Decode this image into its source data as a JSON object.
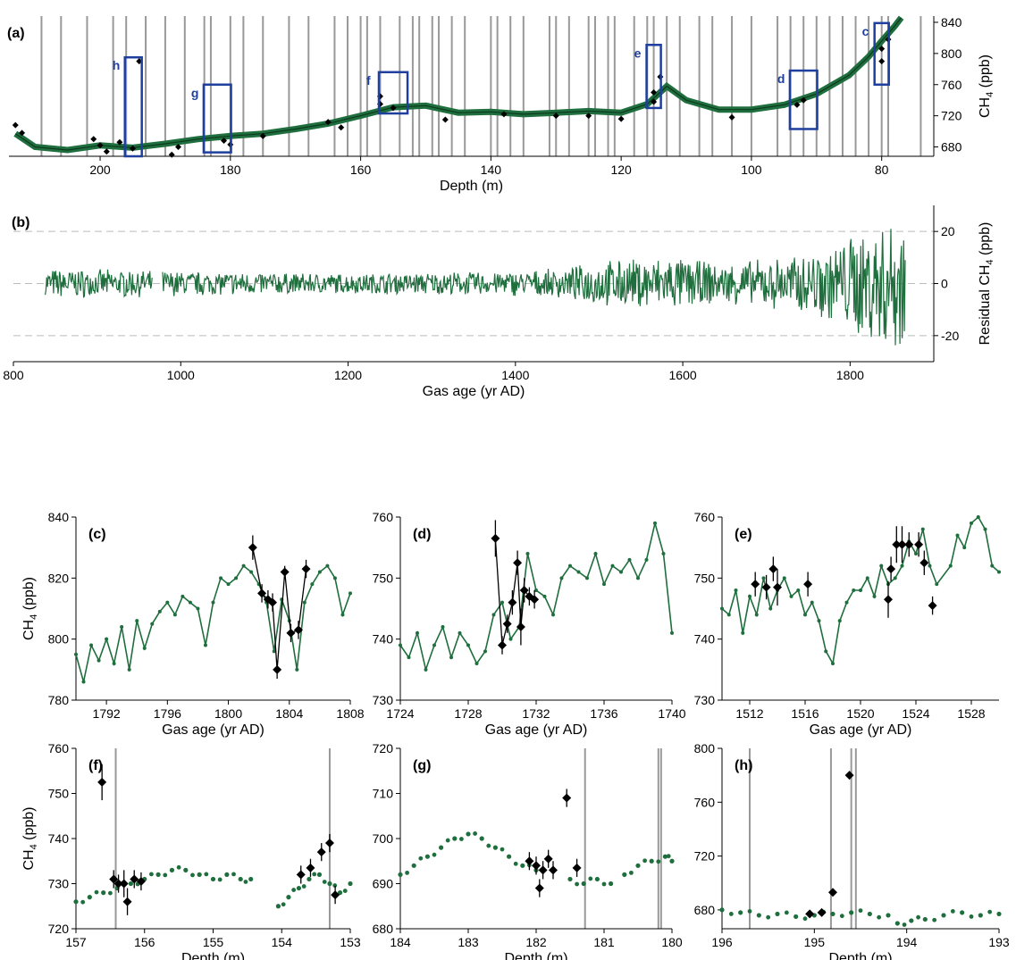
{
  "colors": {
    "data": "#1f6e3d",
    "points": "#000000",
    "boxes": "#1f3f9e",
    "lines": "#999999",
    "dashes": "#bbbbbb"
  },
  "chart_data": [
    {
      "id": "a",
      "type": "line",
      "panel_label": "(a)",
      "xlabel": "Depth (m)",
      "ylabel": "CH",
      "ylabel_sub": "4",
      "ylabel_tail": " (ppb)",
      "xlim": [
        214,
        72
      ],
      "ylim": [
        668,
        848
      ],
      "x_reversed": true,
      "xticks": [
        200,
        180,
        160,
        140,
        120,
        100,
        80
      ],
      "yticks": [
        680,
        720,
        760,
        800,
        840
      ],
      "series": [
        {
          "type": "line",
          "x": [
            213,
            210,
            205,
            200,
            195,
            190,
            185,
            180,
            175,
            170,
            165,
            160,
            155,
            150,
            145,
            140,
            135,
            130,
            125,
            120,
            116,
            113,
            110,
            105,
            100,
            95,
            90,
            85,
            82,
            80,
            78,
            77
          ],
          "y": [
            697,
            680,
            676,
            682,
            679,
            684,
            690,
            694,
            697,
            703,
            710,
            720,
            731,
            733,
            724,
            725,
            722,
            724,
            726,
            724,
            735,
            758,
            740,
            728,
            728,
            734,
            748,
            772,
            796,
            816,
            835,
            846
          ]
        }
      ],
      "points": {
        "x": [
          213,
          212,
          201,
          200,
          199,
          197,
          195,
          194,
          189,
          188,
          181,
          180,
          175,
          165,
          163,
          157,
          157,
          155,
          147,
          138,
          130,
          125,
          120,
          115,
          115,
          114,
          103,
          93,
          92,
          80,
          80,
          79
        ],
        "y": [
          708,
          698,
          690,
          682,
          674,
          686,
          678,
          790,
          670,
          680,
          688,
          683,
          694,
          712,
          705,
          735,
          745,
          730,
          715,
          722,
          720,
          720,
          716,
          738,
          750,
          770,
          718,
          734,
          740,
          806,
          790,
          818
        ]
      },
      "gray_lines_x": [
        209,
        206,
        202,
        198,
        196,
        193,
        190,
        187,
        184,
        183,
        180,
        178,
        175,
        171,
        168,
        164,
        162,
        160,
        159,
        157,
        154,
        152,
        151,
        149,
        148,
        146,
        144,
        140,
        139,
        137,
        135,
        131,
        130,
        128,
        125,
        124,
        122,
        121,
        118,
        116,
        115,
        113,
        111,
        108,
        106,
        103,
        100,
        96,
        94,
        92,
        90,
        88,
        86,
        84,
        82,
        80,
        79,
        74
      ],
      "boxes": [
        {
          "label": "h",
          "x": [
            196.2,
            193.6
          ],
          "y": [
            668,
            795
          ]
        },
        {
          "label": "g",
          "x": [
            184.1,
            179.9
          ],
          "y": [
            673,
            760
          ]
        },
        {
          "label": "f",
          "x": [
            157.2,
            152.8
          ],
          "y": [
            723,
            776
          ]
        },
        {
          "label": "e",
          "x": [
            116.1,
            113.9
          ],
          "y": [
            730,
            811
          ]
        },
        {
          "label": "d",
          "x": [
            94.1,
            89.9
          ],
          "y": [
            703,
            778
          ]
        },
        {
          "label": "c",
          "x": [
            81.1,
            78.9
          ],
          "y": [
            760,
            839
          ]
        }
      ]
    },
    {
      "id": "b",
      "type": "line",
      "panel_label": "(b)",
      "xlabel": "Gas age (yr AD)",
      "ylabel": "Residual CH",
      "ylabel_sub": "4",
      "ylabel_tail": " (ppb)",
      "xlim": [
        800,
        1900
      ],
      "ylim": [
        -30,
        30
      ],
      "xticks": [
        800,
        1000,
        1200,
        1400,
        1600,
        1800
      ],
      "yticks": [
        -20,
        0,
        20
      ],
      "dashed_y": [
        -20,
        0,
        20
      ],
      "series": [
        {
          "type": "line",
          "x_range": [
            838,
            1866
          ],
          "gaps": [
            [
              966,
              978
            ]
          ],
          "amplitude_profile": [
            [
              838,
              6
            ],
            [
              1000,
              5
            ],
            [
              1200,
              4
            ],
            [
              1400,
              5
            ],
            [
              1460,
              6
            ],
            [
              1500,
              9
            ],
            [
              1580,
              11
            ],
            [
              1650,
              8
            ],
            [
              1700,
              10
            ],
            [
              1750,
              12
            ],
            [
              1780,
              16
            ],
            [
              1820,
              24
            ],
            [
              1866,
              28
            ]
          ]
        }
      ]
    },
    {
      "id": "c",
      "type": "line",
      "panel_label": "(c)",
      "xlabel": "Gas age (yr AD)",
      "ylabel": "CH",
      "ylabel_sub": "4",
      "ylabel_tail": " (ppb)",
      "xlim": [
        1790,
        1808
      ],
      "ylim": [
        780,
        840
      ],
      "xticks": [
        1792,
        1796,
        1800,
        1804,
        1808
      ],
      "yticks": [
        780,
        800,
        820,
        840
      ],
      "series": [
        {
          "type": "line",
          "x": [
            1790,
            1790.5,
            1791,
            1791.5,
            1792,
            1792.5,
            1793,
            1793.5,
            1794,
            1794.5,
            1795,
            1795.5,
            1796,
            1796.5,
            1797,
            1797.5,
            1798,
            1798.5,
            1799,
            1799.5,
            1800,
            1800.5,
            1801,
            1801.5,
            1802,
            1802.5,
            1803,
            1803.5,
            1804,
            1804.5,
            1805,
            1805.5,
            1806,
            1806.5,
            1807,
            1807.5,
            1808
          ],
          "y": [
            795,
            786,
            798,
            793,
            800,
            792,
            804,
            790,
            806,
            797,
            805,
            809,
            812,
            808,
            814,
            812,
            810,
            798,
            812,
            820,
            818,
            820,
            824,
            822,
            818,
            812,
            796,
            813,
            806,
            790,
            812,
            818,
            822,
            824,
            820,
            808,
            815
          ]
        }
      ],
      "points": {
        "x": [
          1801.6,
          1802.2,
          1802.6,
          1802.9,
          1803.2,
          1803.7,
          1804.1,
          1804.6,
          1805.1
        ],
        "y": [
          830,
          815,
          813,
          812,
          790,
          822,
          802,
          803,
          823
        ],
        "err": [
          4,
          3,
          3,
          3,
          3,
          2,
          3,
          3,
          3
        ]
      }
    },
    {
      "id": "d",
      "type": "line",
      "panel_label": "(d)",
      "xlabel": "Gas age (yr AD)",
      "ylabel": "",
      "ylabel_sub": "",
      "ylabel_tail": "",
      "xlim": [
        1724,
        1740
      ],
      "ylim": [
        730,
        760
      ],
      "xticks": [
        1724,
        1728,
        1732,
        1736,
        1740
      ],
      "yticks": [
        730,
        740,
        750,
        760
      ],
      "series": [
        {
          "type": "line",
          "x": [
            1724,
            1724.5,
            1725,
            1725.5,
            1726,
            1726.5,
            1727,
            1727.5,
            1728,
            1728.5,
            1729,
            1729.5,
            1730,
            1730.5,
            1731,
            1731.5,
            1732,
            1732.5,
            1733,
            1733.5,
            1734,
            1734.5,
            1735,
            1735.5,
            1736,
            1736.5,
            1737,
            1737.5,
            1738,
            1738.5,
            1739,
            1739.5,
            1740
          ],
          "y": [
            739,
            737,
            741,
            735,
            739,
            742,
            737,
            741,
            739,
            736,
            738,
            744,
            746,
            740,
            742,
            754,
            748,
            747,
            744,
            750,
            752,
            751,
            750,
            754,
            749,
            752,
            751,
            753,
            750,
            753,
            759,
            754,
            741
          ]
        }
      ],
      "points": {
        "x": [
          1729.6,
          1730.0,
          1730.3,
          1730.6,
          1730.9,
          1731.1,
          1731.3,
          1731.6,
          1731.9
        ],
        "y": [
          756.5,
          739,
          742.5,
          746,
          752.5,
          742,
          748,
          747,
          746.5
        ],
        "err": [
          3,
          1.5,
          1.5,
          2,
          2,
          3,
          2,
          1.5,
          1.5
        ]
      }
    },
    {
      "id": "e",
      "type": "line",
      "panel_label": "(e)",
      "xlabel": "Gas age (yr AD)",
      "ylabel": "",
      "ylabel_sub": "",
      "ylabel_tail": "",
      "xlim": [
        1510,
        1530
      ],
      "ylim": [
        730,
        760
      ],
      "xticks": [
        1512,
        1516,
        1520,
        1524,
        1528
      ],
      "yticks": [
        730,
        740,
        750,
        760
      ],
      "series": [
        {
          "type": "line",
          "x": [
            1510,
            1510.5,
            1511,
            1511.5,
            1512,
            1512.5,
            1513,
            1513.5,
            1514,
            1514.5,
            1515,
            1515.5,
            1516,
            1516.5,
            1517,
            1517.5,
            1518,
            1518.5,
            1519,
            1519.5,
            1520,
            1520.5,
            1521,
            1521.5,
            1522,
            1522.5,
            1523,
            1523.5,
            1524,
            1524.5,
            1525,
            1525.5,
            1526.5,
            1527,
            1527.5,
            1528,
            1528.5,
            1529,
            1529.5,
            1530
          ],
          "y": [
            745,
            744,
            748,
            741,
            747,
            744,
            750,
            745,
            748,
            750,
            747,
            748,
            744,
            746,
            743,
            738,
            736,
            743,
            746,
            748,
            748,
            750,
            747,
            752,
            749,
            750,
            752,
            756,
            754,
            758,
            752,
            749,
            752,
            757,
            755,
            759,
            760,
            758,
            752,
            751
          ]
        }
      ],
      "points": {
        "x": [
          1512.4,
          1513.2,
          1513.7,
          1514.0,
          1516.2,
          1522.0,
          1522.2,
          1522.6,
          1523.0,
          1523.5,
          1524.2,
          1524.6,
          1525.2
        ],
        "y": [
          749,
          748.5,
          751.5,
          748.5,
          749,
          746.5,
          751.5,
          755.5,
          755.5,
          755.5,
          755.5,
          752.5,
          745.5
        ],
        "err": [
          2,
          2,
          2,
          3,
          2,
          3,
          2,
          3,
          3,
          2,
          2,
          2,
          1.5
        ]
      }
    },
    {
      "id": "f",
      "type": "scatter",
      "panel_label": "(f)",
      "xlabel": "Depth (m)",
      "ylabel": "CH",
      "ylabel_sub": "4",
      "ylabel_tail": " (ppb)",
      "xlim": [
        157,
        153
      ],
      "ylim": [
        720,
        760
      ],
      "x_reversed": true,
      "xticks": [
        157,
        156,
        155,
        154,
        153
      ],
      "yticks": [
        720,
        730,
        740,
        750,
        760
      ],
      "series": [
        {
          "type": "scatter",
          "x": [
            157,
            156.8,
            156.6,
            156.4,
            156.2,
            156,
            155.8,
            155.6,
            155.4,
            155.2,
            155,
            154.8,
            154.6,
            154.45
          ],
          "y": [
            726,
            727,
            728,
            729,
            730,
            731,
            732,
            733,
            733,
            732,
            731,
            732,
            731,
            731
          ]
        },
        {
          "type": "scatter",
          "x": [
            154.05,
            153.9,
            153.75,
            153.6,
            153.45,
            153.3,
            153.15,
            153
          ],
          "y": [
            725,
            727,
            729,
            731,
            732,
            730,
            728,
            730
          ]
        }
      ],
      "points": {
        "x": [
          156.62,
          156.45,
          156.38,
          156.3,
          156.25,
          156.15,
          156.05,
          153.72,
          153.58,
          153.42,
          153.3,
          153.22
        ],
        "y": [
          752.5,
          731,
          730,
          730,
          726,
          731,
          730.5,
          732,
          733.5,
          737,
          739,
          727.5
        ],
        "err": [
          4,
          2,
          2,
          3,
          3,
          2,
          2,
          2,
          2,
          2,
          2,
          2
        ]
      },
      "gray_lines_x": [
        156.42,
        153.3
      ]
    },
    {
      "id": "g",
      "type": "scatter",
      "panel_label": "(g)",
      "xlabel": "Depth (m)",
      "ylabel": "",
      "ylabel_sub": "",
      "ylabel_tail": "",
      "xlim": [
        184,
        180
      ],
      "ylim": [
        680,
        720
      ],
      "x_reversed": true,
      "xticks": [
        184,
        183,
        182,
        181,
        180
      ],
      "yticks": [
        680,
        690,
        700,
        710,
        720
      ],
      "series": [
        {
          "type": "scatter",
          "x": [
            184,
            183.8,
            183.6,
            183.4,
            183.2,
            183,
            182.8,
            182.6,
            182.4,
            182.2,
            182
          ],
          "y": [
            692,
            694,
            696,
            698,
            700,
            701,
            700,
            698,
            696,
            694,
            693
          ]
        },
        {
          "type": "scatter",
          "x": [
            181.5,
            181.3,
            181.1,
            180.9
          ],
          "y": [
            691,
            690,
            691,
            690
          ]
        },
        {
          "type": "scatter",
          "x": [
            180.7,
            180.5,
            180.3,
            180.1,
            180
          ],
          "y": [
            692,
            694,
            695,
            696,
            695
          ]
        }
      ],
      "points": {
        "x": [
          182.1,
          182.0,
          181.95,
          181.9,
          181.82,
          181.75,
          181.55,
          181.4
        ],
        "y": [
          695,
          694,
          689,
          693,
          695.5,
          693,
          709,
          693.5
        ],
        "err": [
          2,
          2,
          2,
          2,
          2,
          2,
          2,
          2
        ]
      },
      "gray_lines_x": [
        181.28,
        180.2,
        180.16
      ]
    },
    {
      "id": "h",
      "type": "scatter",
      "panel_label": "(h)",
      "xlabel": "Depth (m)",
      "ylabel": "",
      "ylabel_sub": "",
      "ylabel_tail": "",
      "xlim": [
        196,
        193
      ],
      "ylim": [
        666,
        800
      ],
      "x_reversed": true,
      "xticks": [
        196,
        195,
        194,
        193
      ],
      "yticks": [
        680,
        720,
        760,
        800
      ],
      "series": [
        {
          "type": "scatter",
          "x": [
            196,
            195.8,
            195.6,
            195.4,
            195.2,
            195,
            194.8,
            194.6,
            194.4,
            194.2
          ],
          "y": [
            680,
            678,
            676,
            677,
            675,
            676,
            677,
            678,
            677,
            676
          ]
        },
        {
          "type": "scatter",
          "x": [
            194.1,
            193.95,
            193.8,
            193.6,
            193.4,
            193.2,
            193
          ],
          "y": [
            670,
            672,
            673,
            676,
            678,
            676,
            677
          ]
        }
      ],
      "points": {
        "x": [
          195.05,
          194.92,
          194.8,
          194.62
        ],
        "y": [
          677,
          678,
          693,
          780
        ],
        "err": [
          2,
          2,
          1,
          3
        ]
      },
      "gray_lines_x": [
        195.7,
        194.82,
        194.6,
        194.55
      ]
    }
  ]
}
